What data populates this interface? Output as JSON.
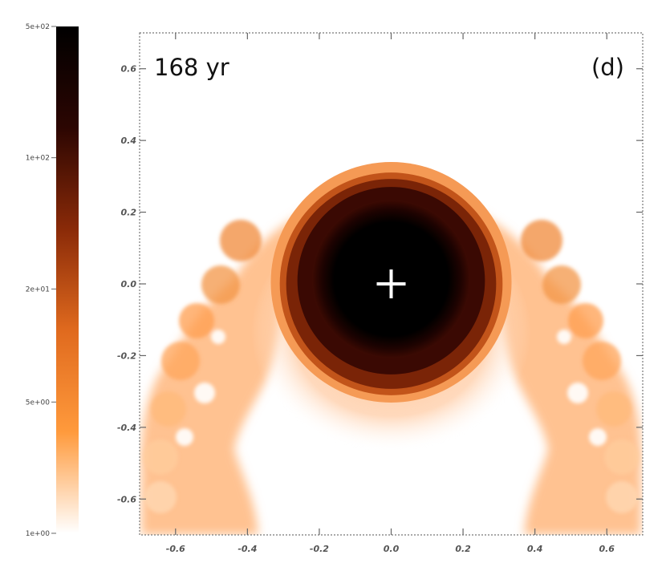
{
  "chart_data": {
    "type": "heatmap",
    "time_label": "168 yr",
    "panel_label": "(d)",
    "xlim": [
      -0.7,
      0.7
    ],
    "ylim": [
      -0.7,
      0.7
    ],
    "xticks": [
      -0.6,
      -0.4,
      -0.2,
      0.0,
      0.2,
      0.4,
      0.6
    ],
    "yticks": [
      -0.6,
      -0.4,
      -0.2,
      0.0,
      0.2,
      0.4,
      0.6
    ],
    "xtick_labels": [
      "-0.6",
      "-0.4",
      "-0.2",
      "0.0",
      "0.2",
      "0.4",
      "0.6"
    ],
    "ytick_labels": [
      "-0.6",
      "-0.4",
      "-0.2",
      "0.0",
      "0.2",
      "0.4",
      "0.6"
    ],
    "colorbar": {
      "scale": "log",
      "min": 1,
      "max": 500,
      "tick_values": [
        500,
        100,
        20,
        5,
        1
      ],
      "tick_labels": [
        "5e+02",
        "1e+02",
        "2e+01",
        "5e+00",
        "1e+00"
      ],
      "colors": [
        "#ffffff",
        "#ff9a3c",
        "#e06a1e",
        "#8a2a08",
        "#2c0602",
        "#000000"
      ]
    },
    "marker": {
      "symbol": "+",
      "x": 0.0,
      "y": 0.0,
      "color": "#ffffff"
    },
    "structures": {
      "core": {
        "center": [
          0.0,
          0.0
        ],
        "radius": 0.22,
        "value": 500
      },
      "shell": {
        "center": [
          0.0,
          0.0
        ],
        "radius": 0.31,
        "value": 60
      },
      "outer_halo": {
        "center": [
          0.0,
          0.0
        ],
        "radius": 0.335,
        "value": 8
      }
    }
  }
}
